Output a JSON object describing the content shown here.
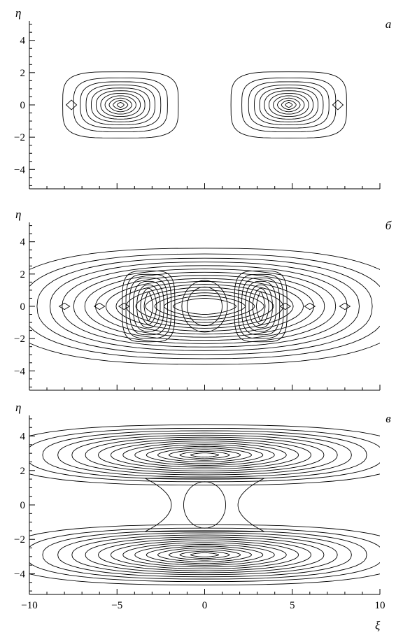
{
  "chart_data": [
    {
      "type": "contour",
      "panel_label": "а",
      "ylabel": "η",
      "xlabel": "",
      "xlim": [
        -10,
        10
      ],
      "ylim": [
        -5.2,
        5.2
      ],
      "yticks": [
        -4,
        -2,
        0,
        2,
        4
      ],
      "xticks": [
        -10,
        -5,
        0,
        5,
        10
      ],
      "show_x_tick_labels": false,
      "grid": false,
      "features": [
        {
          "shape": "lobe",
          "cx": -4.8,
          "cy": 0,
          "hw": 3.3,
          "hh": 2.05,
          "levels": 11,
          "min_hw": 0.2,
          "min_hh": 0.15,
          "power": 0.7
        },
        {
          "shape": "lobe",
          "cx": 4.8,
          "cy": 0,
          "hw": 3.3,
          "hh": 2.05,
          "levels": 11,
          "min_hw": 0.2,
          "min_hh": 0.15,
          "power": 0.7
        },
        {
          "shape": "diamond",
          "cx": -7.6,
          "cy": 0,
          "hw": 0.3,
          "hh": 0.3
        },
        {
          "shape": "diamond",
          "cx": 7.6,
          "cy": 0,
          "hw": 0.3,
          "hh": 0.3
        }
      ]
    },
    {
      "type": "contour",
      "panel_label": "б",
      "ylabel": "η",
      "xlabel": "",
      "xlim": [
        -10,
        10
      ],
      "ylim": [
        -5.2,
        5.2
      ],
      "yticks": [
        -4,
        -2,
        0,
        2,
        4
      ],
      "xticks": [
        -10,
        -5,
        0,
        5,
        10
      ],
      "show_x_tick_labels": false,
      "grid": false,
      "features": [
        {
          "shape": "band",
          "cx": 0,
          "cy": 0,
          "hw": 11.5,
          "hh": 3.6,
          "levels": 16,
          "min_hw": 1.8,
          "min_hh": 0.5,
          "power": 0.8
        },
        {
          "shape": "lobe",
          "cx": -3.2,
          "cy": 0,
          "hw": 1.5,
          "hh": 2.2,
          "levels": 7,
          "min_hw": 0.25,
          "min_hh": 0.9,
          "power": 1
        },
        {
          "shape": "lobe",
          "cx": 3.2,
          "cy": 0,
          "hw": 1.5,
          "hh": 2.2,
          "levels": 7,
          "min_hw": 0.25,
          "min_hh": 0.9,
          "power": 1
        },
        {
          "shape": "circle",
          "cx": 0,
          "cy": 0,
          "rx": 1.0,
          "ry": 1.2
        },
        {
          "shape": "circle",
          "cx": 0,
          "cy": 0,
          "rx": 1.3,
          "ry": 1.6
        },
        {
          "shape": "diamond",
          "cx": -8.0,
          "cy": 0,
          "hw": 0.3,
          "hh": 0.2
        },
        {
          "shape": "diamond",
          "cx": 8.0,
          "cy": 0,
          "hw": 0.3,
          "hh": 0.2
        },
        {
          "shape": "diamond",
          "cx": -6.0,
          "cy": 0,
          "hw": 0.3,
          "hh": 0.2
        },
        {
          "shape": "diamond",
          "cx": 6.0,
          "cy": 0,
          "hw": 0.3,
          "hh": 0.2
        },
        {
          "shape": "diamond",
          "cx": -4.6,
          "cy": 0,
          "hw": 0.3,
          "hh": 0.2
        },
        {
          "shape": "diamond",
          "cx": 4.6,
          "cy": 0,
          "hw": 0.3,
          "hh": 0.2
        }
      ]
    },
    {
      "type": "contour",
      "panel_label": "в",
      "ylabel": "η",
      "xlabel": "ξ",
      "xlim": [
        -10,
        10
      ],
      "ylim": [
        -5.2,
        5.2
      ],
      "yticks": [
        -4,
        -2,
        0,
        2,
        4
      ],
      "xticks": [
        -10,
        -5,
        0,
        5,
        10
      ],
      "show_x_tick_labels": true,
      "grid": false,
      "features": [
        {
          "shape": "band",
          "cx": 0,
          "cy": 2.9,
          "hw": 11.5,
          "hh": 1.75,
          "levels": 15,
          "min_hw": 0.8,
          "min_hh": 0.12,
          "power": 0.8
        },
        {
          "shape": "band",
          "cx": 0,
          "cy": -2.9,
          "hw": 11.5,
          "hh": 1.75,
          "levels": 15,
          "min_hw": 0.8,
          "min_hh": 0.12,
          "power": 0.8
        },
        {
          "shape": "circle",
          "cx": 0,
          "cy": 0,
          "rx": 1.2,
          "ry": 1.35
        },
        {
          "shape": "hourglass",
          "cx": 0,
          "cy": 0,
          "hw": 3.4,
          "hh": 1.55,
          "waist": 1.9
        }
      ]
    }
  ]
}
